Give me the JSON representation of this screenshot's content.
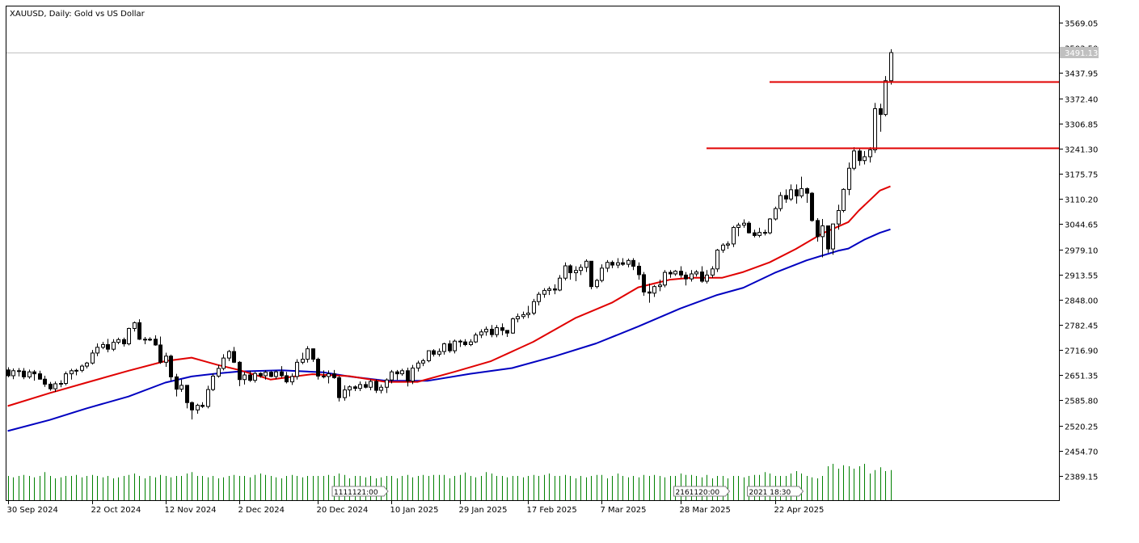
{
  "chart_data": {
    "type": "candlestick",
    "title": "XAUUSD, Daily:  Gold vs US Dollar",
    "y_ticks": [
      "3569.05",
      "3503.50",
      "3437.95",
      "3372.40",
      "3306.85",
      "3241.30",
      "3175.75",
      "3110.20",
      "3044.65",
      "2979.10",
      "2913.55",
      "2848.00",
      "2782.45",
      "2716.90",
      "2651.35",
      "2585.80",
      "2520.25",
      "2454.70",
      "2389.15"
    ],
    "ylim": [
      2356.4,
      3597.8
    ],
    "x_labels": [
      "30 Sep 2024",
      "22 Oct 2024",
      "12 Nov 2024",
      "2 Dec 2024",
      "20 Dec 2024",
      "10 Jan 2025",
      "29 Jan 2025",
      "17 Feb 2025",
      "7 Mar 2025",
      "28 Mar 2025",
      "22 Apr 2025"
    ],
    "x_label_index": [
      0,
      16,
      30,
      44,
      59,
      73,
      86,
      99,
      113,
      128,
      146
    ],
    "current_price": "3491.13",
    "colors": {
      "bull": "#000000",
      "bear": "#000000",
      "ma_fast": "#e00000",
      "ma_slow": "#0000c0",
      "volume": "#008000",
      "level": "#e00000",
      "grid": "#c0c0c0"
    },
    "levels": [
      {
        "price": 3415,
        "from_index": 145
      },
      {
        "price": 3243,
        "from_index": 133
      }
    ],
    "event_flags": [
      {
        "text": "1111121:00",
        "index": 63
      },
      {
        "text": "2161120:00",
        "index": 128
      },
      {
        "text": "2021 18:30",
        "index": 142
      }
    ],
    "candles": [
      [
        2665,
        2672,
        2646,
        2650
      ],
      [
        2650,
        2669,
        2641,
        2663
      ],
      [
        2663,
        2670,
        2648,
        2662
      ],
      [
        2662,
        2670,
        2641,
        2647
      ],
      [
        2647,
        2666,
        2642,
        2660
      ],
      [
        2660,
        2665,
        2637,
        2655
      ],
      [
        2655,
        2663,
        2640,
        2641
      ],
      [
        2641,
        2650,
        2621,
        2628
      ],
      [
        2628,
        2634,
        2611,
        2616
      ],
      [
        2616,
        2635,
        2608,
        2629
      ],
      [
        2629,
        2638,
        2620,
        2630
      ],
      [
        2630,
        2661,
        2625,
        2655
      ],
      [
        2655,
        2668,
        2640,
        2663
      ],
      [
        2663,
        2668,
        2651,
        2664
      ],
      [
        2664,
        2679,
        2659,
        2675
      ],
      [
        2675,
        2686,
        2669,
        2683
      ],
      [
        2683,
        2717,
        2679,
        2709
      ],
      [
        2709,
        2734,
        2701,
        2724
      ],
      [
        2724,
        2738,
        2719,
        2731
      ],
      [
        2731,
        2746,
        2711,
        2719
      ],
      [
        2719,
        2745,
        2714,
        2737
      ],
      [
        2737,
        2749,
        2732,
        2744
      ],
      [
        2744,
        2749,
        2726,
        2733
      ],
      [
        2733,
        2775,
        2729,
        2773
      ],
      [
        2773,
        2791,
        2765,
        2788
      ],
      [
        2788,
        2797,
        2743,
        2745
      ],
      [
        2745,
        2751,
        2732,
        2745
      ],
      [
        2745,
        2750,
        2740,
        2745
      ],
      [
        2745,
        2755,
        2728,
        2730
      ],
      [
        2730,
        2752,
        2681,
        2685
      ],
      [
        2685,
        2710,
        2673,
        2701
      ],
      [
        2701,
        2705,
        2637,
        2647
      ],
      [
        2647,
        2655,
        2596,
        2615
      ],
      [
        2615,
        2640,
        2608,
        2625
      ],
      [
        2625,
        2625,
        2565,
        2580
      ],
      [
        2580,
        2583,
        2536,
        2561
      ],
      [
        2561,
        2577,
        2551,
        2573
      ],
      [
        2573,
        2581,
        2566,
        2570
      ],
      [
        2570,
        2624,
        2565,
        2614
      ],
      [
        2614,
        2656,
        2610,
        2649
      ],
      [
        2649,
        2678,
        2645,
        2669
      ],
      [
        2669,
        2706,
        2664,
        2696
      ],
      [
        2696,
        2717,
        2688,
        2713
      ],
      [
        2713,
        2725,
        2683,
        2685
      ],
      [
        2685,
        2688,
        2623,
        2640
      ],
      [
        2640,
        2660,
        2627,
        2652
      ],
      [
        2652,
        2663,
        2634,
        2638
      ],
      [
        2638,
        2660,
        2632,
        2656
      ],
      [
        2656,
        2659,
        2645,
        2650
      ],
      [
        2650,
        2664,
        2640,
        2659
      ],
      [
        2659,
        2662,
        2646,
        2648
      ],
      [
        2648,
        2664,
        2641,
        2660
      ],
      [
        2660,
        2675,
        2645,
        2650
      ],
      [
        2650,
        2660,
        2630,
        2634
      ],
      [
        2634,
        2656,
        2626,
        2648
      ],
      [
        2648,
        2693,
        2640,
        2685
      ],
      [
        2685,
        2710,
        2680,
        2693
      ],
      [
        2693,
        2727,
        2684,
        2720
      ],
      [
        2720,
        2721,
        2686,
        2693
      ],
      [
        2693,
        2697,
        2640,
        2649
      ],
      [
        2649,
        2664,
        2643,
        2648
      ],
      [
        2648,
        2664,
        2630,
        2655
      ],
      [
        2655,
        2665,
        2642,
        2645
      ],
      [
        2645,
        2650,
        2583,
        2593
      ],
      [
        2593,
        2625,
        2585,
        2613
      ],
      [
        2613,
        2625,
        2596,
        2621
      ],
      [
        2621,
        2625,
        2610,
        2617
      ],
      [
        2617,
        2635,
        2610,
        2627
      ],
      [
        2627,
        2635,
        2617,
        2620
      ],
      [
        2620,
        2640,
        2612,
        2635
      ],
      [
        2635,
        2640,
        2605,
        2612
      ],
      [
        2612,
        2627,
        2604,
        2620
      ],
      [
        2620,
        2643,
        2605,
        2639
      ],
      [
        2639,
        2665,
        2630,
        2660
      ],
      [
        2660,
        2665,
        2639,
        2655
      ],
      [
        2655,
        2668,
        2650,
        2663
      ],
      [
        2663,
        2671,
        2622,
        2636
      ],
      [
        2636,
        2678,
        2628,
        2670
      ],
      [
        2670,
        2689,
        2661,
        2683
      ],
      [
        2683,
        2694,
        2675,
        2689
      ],
      [
        2689,
        2715,
        2685,
        2715
      ],
      [
        2715,
        2719,
        2700,
        2706
      ],
      [
        2706,
        2721,
        2700,
        2713
      ],
      [
        2713,
        2736,
        2705,
        2733
      ],
      [
        2733,
        2742,
        2710,
        2715
      ],
      [
        2715,
        2744,
        2708,
        2740
      ],
      [
        2740,
        2744,
        2725,
        2738
      ],
      [
        2738,
        2745,
        2727,
        2731
      ],
      [
        2731,
        2745,
        2727,
        2738
      ],
      [
        2738,
        2762,
        2735,
        2756
      ],
      [
        2756,
        2771,
        2748,
        2764
      ],
      [
        2764,
        2778,
        2754,
        2771
      ],
      [
        2771,
        2782,
        2750,
        2757
      ],
      [
        2757,
        2782,
        2750,
        2775
      ],
      [
        2775,
        2786,
        2755,
        2768
      ],
      [
        2768,
        2766,
        2751,
        2761
      ],
      [
        2761,
        2801,
        2759,
        2798
      ],
      [
        2798,
        2812,
        2789,
        2804
      ],
      [
        2804,
        2817,
        2798,
        2809
      ],
      [
        2809,
        2832,
        2800,
        2813
      ],
      [
        2813,
        2850,
        2808,
        2843
      ],
      [
        2843,
        2868,
        2833,
        2862
      ],
      [
        2862,
        2878,
        2853,
        2872
      ],
      [
        2872,
        2882,
        2860,
        2876
      ],
      [
        2876,
        2888,
        2862,
        2873
      ],
      [
        2873,
        2912,
        2870,
        2904
      ],
      [
        2904,
        2945,
        2898,
        2936
      ],
      [
        2936,
        2940,
        2900,
        2918
      ],
      [
        2918,
        2935,
        2896,
        2924
      ],
      [
        2924,
        2940,
        2912,
        2932
      ],
      [
        2932,
        2953,
        2920,
        2948
      ],
      [
        2948,
        2948,
        2875,
        2882
      ],
      [
        2882,
        2902,
        2877,
        2898
      ],
      [
        2898,
        2940,
        2893,
        2930
      ],
      [
        2930,
        2951,
        2920,
        2945
      ],
      [
        2945,
        2950,
        2930,
        2938
      ],
      [
        2938,
        2956,
        2930,
        2944
      ],
      [
        2944,
        2956,
        2936,
        2940
      ],
      [
        2940,
        2955,
        2932,
        2950
      ],
      [
        2950,
        2956,
        2925,
        2935
      ],
      [
        2935,
        2945,
        2900,
        2913
      ],
      [
        2913,
        2920,
        2858,
        2868
      ],
      [
        2868,
        2890,
        2840,
        2865
      ],
      [
        2865,
        2886,
        2855,
        2882
      ],
      [
        2882,
        2900,
        2870,
        2886
      ],
      [
        2886,
        2925,
        2880,
        2919
      ],
      [
        2919,
        2925,
        2905,
        2915
      ],
      [
        2915,
        2925,
        2910,
        2922
      ],
      [
        2922,
        2935,
        2905,
        2912
      ],
      [
        2912,
        2920,
        2885,
        2902
      ],
      [
        2902,
        2925,
        2895,
        2915
      ],
      [
        2915,
        2925,
        2908,
        2920
      ],
      [
        2920,
        2935,
        2892,
        2896
      ],
      [
        2896,
        2925,
        2890,
        2912
      ],
      [
        2912,
        2935,
        2905,
        2928
      ],
      [
        2928,
        2980,
        2920,
        2977
      ],
      [
        2977,
        2995,
        2970,
        2990
      ],
      [
        2990,
        3000,
        2980,
        2993
      ],
      [
        2993,
        3040,
        2985,
        3036
      ],
      [
        3036,
        3048,
        3013,
        3042
      ],
      [
        3042,
        3057,
        3035,
        3047
      ],
      [
        3047,
        3052,
        3020,
        3022
      ],
      [
        3022,
        3030,
        3010,
        3015
      ],
      [
        3015,
        3035,
        3010,
        3023
      ],
      [
        3023,
        3030,
        3015,
        3022
      ],
      [
        3022,
        3060,
        3018,
        3058
      ],
      [
        3058,
        3090,
        3054,
        3085
      ],
      [
        3085,
        3128,
        3078,
        3119
      ],
      [
        3119,
        3135,
        3100,
        3110
      ],
      [
        3110,
        3148,
        3105,
        3134
      ],
      [
        3134,
        3148,
        3098,
        3118
      ],
      [
        3118,
        3168,
        3112,
        3137
      ],
      [
        3137,
        3140,
        3100,
        3125
      ],
      [
        3125,
        3128,
        3051,
        3054
      ],
      [
        3054,
        3060,
        2999,
        3012
      ],
      [
        3012,
        3058,
        2958,
        3040
      ],
      [
        3040,
        3040,
        2970,
        2980
      ],
      [
        2980,
        3040,
        2965,
        3045
      ],
      [
        3045,
        3095,
        3030,
        3080
      ],
      [
        3080,
        3138,
        3075,
        3135
      ],
      [
        3135,
        3205,
        3120,
        3190
      ],
      [
        3190,
        3245,
        3185,
        3235
      ],
      [
        3235,
        3240,
        3197,
        3210
      ],
      [
        3210,
        3235,
        3200,
        3220
      ],
      [
        3220,
        3245,
        3205,
        3238
      ],
      [
        3238,
        3360,
        3230,
        3345
      ],
      [
        3345,
        3358,
        3285,
        3330
      ],
      [
        3330,
        3430,
        3325,
        3418
      ],
      [
        3418,
        3500,
        3408,
        3491
      ]
    ],
    "ma_fast": [
      [
        0,
        2571
      ],
      [
        8,
        2605
      ],
      [
        15,
        2632
      ],
      [
        23,
        2663
      ],
      [
        30,
        2688
      ],
      [
        35,
        2697
      ],
      [
        40,
        2678
      ],
      [
        44,
        2665
      ],
      [
        50,
        2640
      ],
      [
        58,
        2654
      ],
      [
        65,
        2649
      ],
      [
        72,
        2634
      ],
      [
        78,
        2634
      ],
      [
        85,
        2660
      ],
      [
        92,
        2688
      ],
      [
        100,
        2738
      ],
      [
        108,
        2800
      ],
      [
        115,
        2840
      ],
      [
        120,
        2880
      ],
      [
        126,
        2900
      ],
      [
        130,
        2905
      ],
      [
        136,
        2905
      ],
      [
        140,
        2920
      ],
      [
        145,
        2945
      ],
      [
        150,
        2980
      ],
      [
        155,
        3020
      ],
      [
        160,
        3050
      ],
      [
        162,
        3080
      ],
      [
        164,
        3106
      ],
      [
        166,
        3132
      ],
      [
        168,
        3143
      ]
    ],
    "ma_slow": [
      [
        0,
        2506
      ],
      [
        8,
        2535
      ],
      [
        15,
        2565
      ],
      [
        23,
        2596
      ],
      [
        30,
        2632
      ],
      [
        35,
        2648
      ],
      [
        40,
        2656
      ],
      [
        44,
        2661
      ],
      [
        52,
        2664
      ],
      [
        60,
        2659
      ],
      [
        65,
        2648
      ],
      [
        72,
        2637
      ],
      [
        80,
        2637
      ],
      [
        88,
        2655
      ],
      [
        96,
        2670
      ],
      [
        104,
        2700
      ],
      [
        112,
        2734
      ],
      [
        120,
        2778
      ],
      [
        128,
        2825
      ],
      [
        135,
        2860
      ],
      [
        140,
        2879
      ],
      [
        146,
        2918
      ],
      [
        152,
        2950
      ],
      [
        158,
        2975
      ],
      [
        160,
        2981
      ],
      [
        163,
        3004
      ],
      [
        166,
        3022
      ],
      [
        168,
        3031
      ]
    ],
    "volume": [
      0.5,
      0.47,
      0.5,
      0.52,
      0.5,
      0.47,
      0.5,
      0.58,
      0.5,
      0.45,
      0.47,
      0.5,
      0.5,
      0.52,
      0.47,
      0.5,
      0.52,
      0.5,
      0.47,
      0.5,
      0.45,
      0.47,
      0.5,
      0.52,
      0.55,
      0.5,
      0.45,
      0.5,
      0.47,
      0.52,
      0.5,
      0.47,
      0.5,
      0.5,
      0.55,
      0.58,
      0.5,
      0.5,
      0.47,
      0.5,
      0.45,
      0.47,
      0.5,
      0.52,
      0.5,
      0.5,
      0.47,
      0.52,
      0.55,
      0.52,
      0.5,
      0.47,
      0.45,
      0.5,
      0.52,
      0.5,
      0.47,
      0.5,
      0.5,
      0.5,
      0.5,
      0.52,
      0.5,
      0.55,
      0.52,
      0.45,
      0.5,
      0.5,
      0.47,
      0.5,
      0.45,
      0.47,
      0.5,
      0.5,
      0.45,
      0.5,
      0.52,
      0.47,
      0.5,
      0.52,
      0.5,
      0.52,
      0.52,
      0.52,
      0.45,
      0.5,
      0.52,
      0.57,
      0.5,
      0.47,
      0.5,
      0.58,
      0.55,
      0.5,
      0.5,
      0.47,
      0.5,
      0.5,
      0.47,
      0.5,
      0.52,
      0.5,
      0.52,
      0.55,
      0.5,
      0.5,
      0.52,
      0.5,
      0.45,
      0.5,
      0.47,
      0.5,
      0.52,
      0.52,
      0.45,
      0.5,
      0.55,
      0.5,
      0.47,
      0.5,
      0.47,
      0.52,
      0.5,
      0.52,
      0.5,
      0.47,
      0.5,
      0.5,
      0.55,
      0.52,
      0.52,
      0.5,
      0.47,
      0.52,
      0.45,
      0.5,
      0.5,
      0.45,
      0.5,
      0.5,
      0.47,
      0.5,
      0.52,
      0.52,
      0.58,
      0.55,
      0.5,
      0.5,
      0.5,
      0.55,
      0.6,
      0.55,
      0.5,
      0.47,
      0.45,
      0.5,
      0.7,
      0.75,
      0.65,
      0.72,
      0.7,
      0.65,
      0.7,
      0.75,
      0.55,
      0.62,
      0.68,
      0.6,
      0.62
    ]
  }
}
